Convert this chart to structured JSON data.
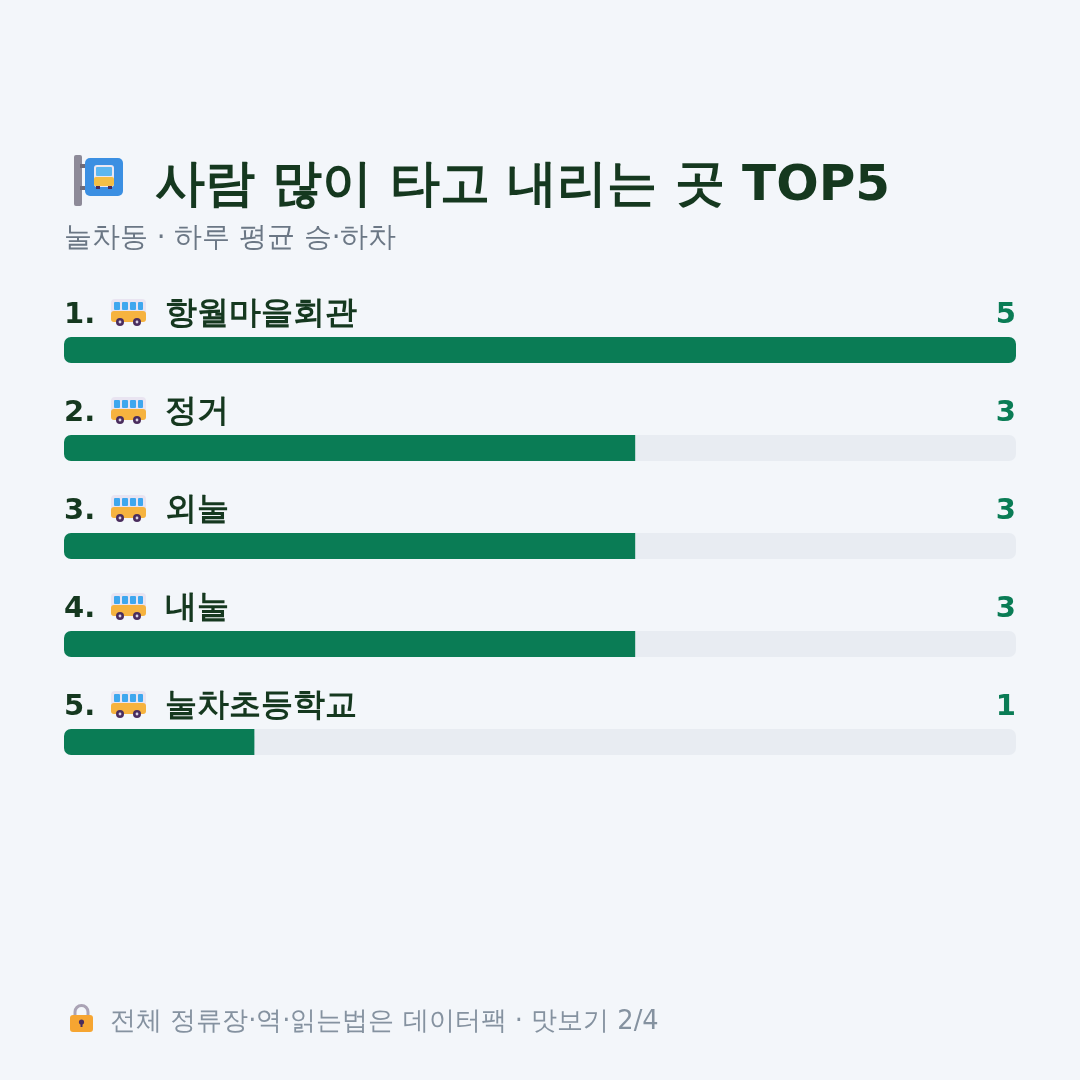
{
  "chart_data": {
    "type": "bar",
    "orientation": "horizontal",
    "title": "사람 많이 타고 내리는 곳 TOP5",
    "subtitle": "눌차동 · 하루 평균 승·하차",
    "categories": [
      "1. 항월마을회관",
      "2. 정거",
      "3. 외눌",
      "4. 내눌",
      "5. 눌차초등학교"
    ],
    "values": [
      5,
      3,
      3,
      3,
      1
    ],
    "color": "#0a7c55",
    "xlim": [
      0,
      5
    ],
    "data_labels": true,
    "tick_labels": "y",
    "annotations": [
      "전체 정류장·역·읽는법은 데이터팩 · 맛보기 2/4"
    ]
  }
}
